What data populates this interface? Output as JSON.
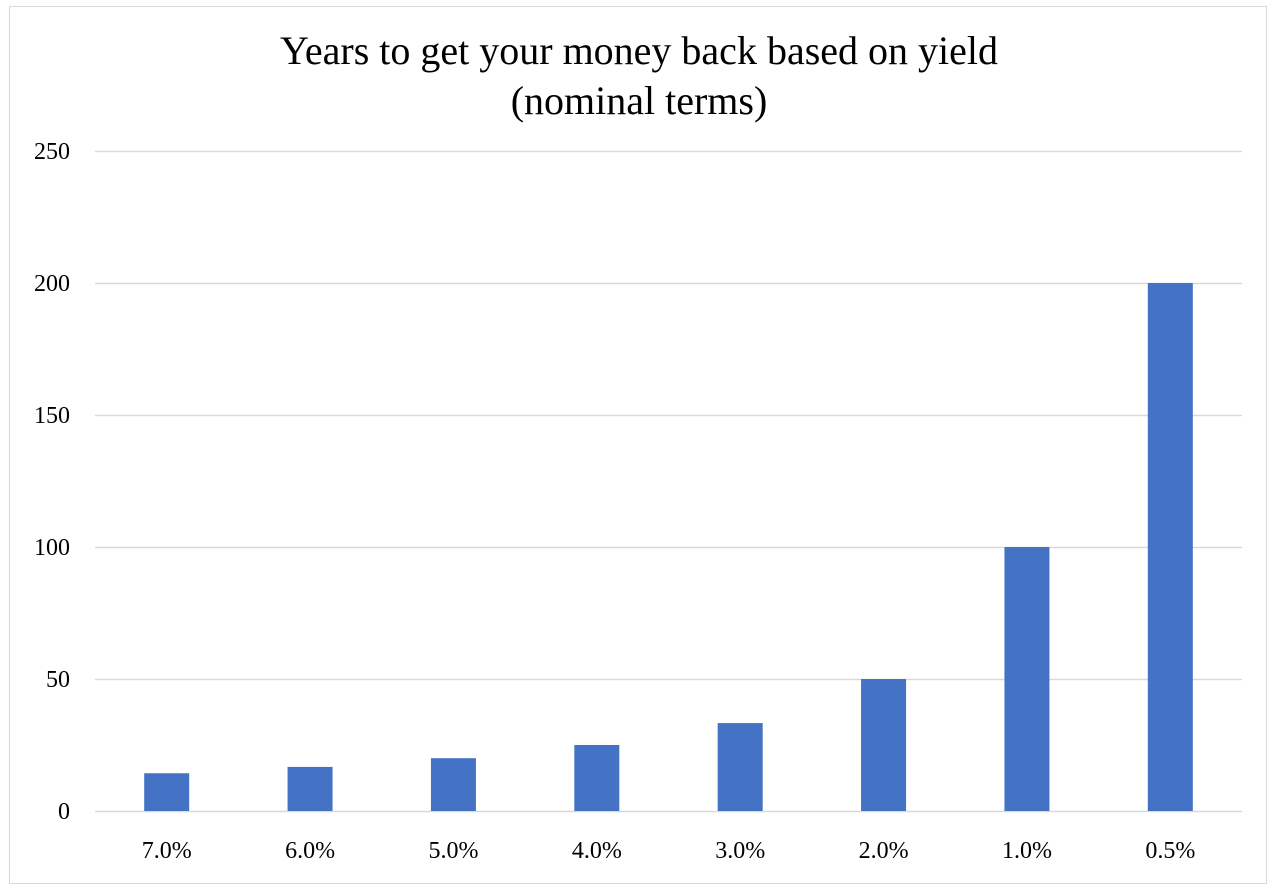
{
  "chart_data": {
    "type": "bar",
    "title_lines": [
      "Years to get your money back based on yield",
      "(nominal terms)"
    ],
    "xlabel": "",
    "ylabel": "",
    "categories": [
      "7.0%",
      "6.0%",
      "5.0%",
      "4.0%",
      "3.0%",
      "2.0%",
      "1.0%",
      "0.5%"
    ],
    "values": [
      14.3,
      16.7,
      20,
      25,
      33.3,
      50,
      100,
      200
    ],
    "ylim": [
      0,
      250
    ],
    "yticks": [
      0,
      50,
      100,
      150,
      200,
      250
    ],
    "ytick_labels": [
      "0",
      "50",
      "100",
      "150",
      "200",
      "250"
    ],
    "grid": true,
    "legend": "none",
    "colors": {
      "bar": "#4472C4",
      "grid": "#d9d9d9",
      "frame": "#d9d9d9"
    }
  }
}
